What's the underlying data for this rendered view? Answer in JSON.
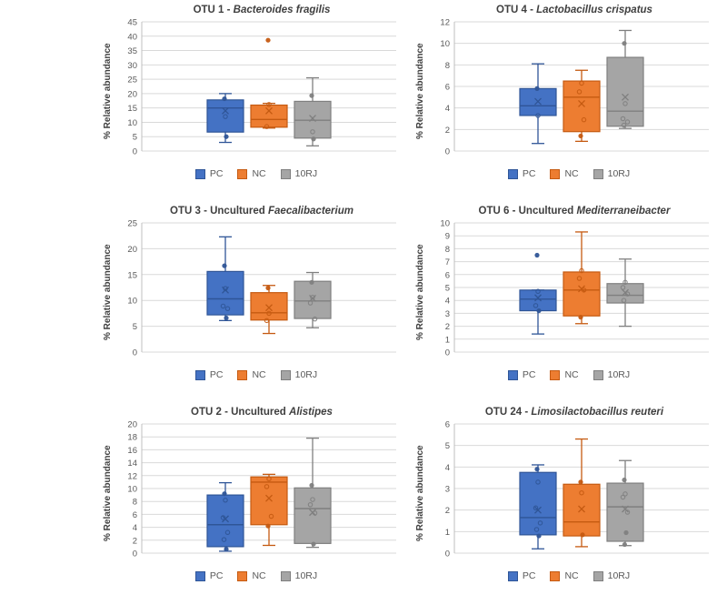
{
  "page": {
    "background": "#ffffff"
  },
  "chart_data": [
    {
      "type": "box",
      "title_prefix": "OTU 1 - ",
      "title_italic": "Bacteroides fragilis",
      "ylabel": "% Relative abundance",
      "ylim": [
        0,
        45
      ],
      "ytick_step": 5,
      "grid": true,
      "legend_position": "bottom",
      "groups": [
        {
          "name": "PC",
          "color": "#4472C4",
          "border": "#2F5597",
          "whisker_low": 3.0,
          "q1": 6.6,
          "median": 15.0,
          "q3": 17.8,
          "whisker_high": 20.0,
          "mean": 14.0,
          "points_open": [
            12.0
          ],
          "points_filled": [
            18.2,
            5.0
          ]
        },
        {
          "name": "NC",
          "color": "#ED7D31",
          "border": "#C55A11",
          "whisker_low": 8.0,
          "q1": 8.3,
          "median": 11.0,
          "q3": 16.0,
          "whisker_high": 16.6,
          "mean": 14.0,
          "points_open": [
            16.2,
            8.5
          ],
          "points_filled": [
            38.6
          ]
        },
        {
          "name": "10RJ",
          "color": "#A5A5A5",
          "border": "#7F7F7F",
          "whisker_low": 1.8,
          "q1": 4.5,
          "median": 10.7,
          "q3": 17.3,
          "whisker_high": 25.5,
          "mean": 11.4,
          "points_open": [
            6.7
          ],
          "points_filled": [
            19.3,
            4.2
          ]
        }
      ]
    },
    {
      "type": "box",
      "title_prefix": "OTU 4 - ",
      "title_italic": "Lactobacillus crispatus",
      "ylabel": "% Relative abundance",
      "ylim": [
        0,
        12
      ],
      "ytick_step": 2,
      "grid": true,
      "legend_position": "bottom",
      "groups": [
        {
          "name": "PC",
          "color": "#4472C4",
          "border": "#2F5597",
          "whisker_low": 0.7,
          "q1": 3.3,
          "median": 4.2,
          "q3": 5.8,
          "whisker_high": 8.1,
          "mean": 4.6,
          "points_open": [
            3.3
          ],
          "points_filled": [
            5.8
          ]
        },
        {
          "name": "NC",
          "color": "#ED7D31",
          "border": "#C55A11",
          "whisker_low": 0.9,
          "q1": 1.8,
          "median": 5.0,
          "q3": 6.5,
          "whisker_high": 7.5,
          "mean": 4.4,
          "points_open": [
            6.3,
            5.5,
            2.9
          ],
          "points_filled": [
            1.4
          ]
        },
        {
          "name": "10RJ",
          "color": "#A5A5A5",
          "border": "#7F7F7F",
          "whisker_low": 2.1,
          "q1": 2.3,
          "median": 3.7,
          "q3": 8.7,
          "whisker_high": 11.2,
          "mean": 5.0,
          "points_open": [
            4.4,
            3.0,
            2.7,
            2.4
          ],
          "points_filled": [
            10.0
          ]
        }
      ]
    },
    {
      "type": "box",
      "title_prefix": "OTU 3 - Uncultured ",
      "title_italic": "Faecalibacterium",
      "ylabel": "% Relative abundance",
      "ylim": [
        0,
        25
      ],
      "ytick_step": 5,
      "grid": true,
      "legend_position": "bottom",
      "groups": [
        {
          "name": "PC",
          "color": "#4472C4",
          "border": "#2F5597",
          "whisker_low": 6.1,
          "q1": 7.2,
          "median": 10.3,
          "q3": 15.6,
          "whisker_high": 22.3,
          "mean": 12.0,
          "points_open": [
            12.3,
            8.9,
            8.4
          ],
          "points_filled": [
            16.7,
            6.6
          ]
        },
        {
          "name": "NC",
          "color": "#ED7D31",
          "border": "#C55A11",
          "whisker_low": 3.6,
          "q1": 6.2,
          "median": 7.6,
          "q3": 11.5,
          "whisker_high": 12.9,
          "mean": 8.6,
          "points_open": [
            7.5,
            6.1
          ],
          "points_filled": [
            12.4
          ]
        },
        {
          "name": "10RJ",
          "color": "#A5A5A5",
          "border": "#7F7F7F",
          "whisker_low": 4.7,
          "q1": 6.5,
          "median": 9.9,
          "q3": 13.7,
          "whisker_high": 15.4,
          "mean": 10.4,
          "points_open": [
            10.6,
            9.5,
            6.4
          ],
          "points_filled": [
            13.5
          ]
        }
      ]
    },
    {
      "type": "box",
      "title_prefix": "OTU 6 - Uncultured ",
      "title_italic": "Mediterraneibacter",
      "ylabel": "% Relative abundance",
      "ylim": [
        0,
        10
      ],
      "ytick_step": 1,
      "grid": true,
      "legend_position": "bottom",
      "groups": [
        {
          "name": "PC",
          "color": "#4472C4",
          "border": "#2F5597",
          "whisker_low": 1.4,
          "q1": 3.2,
          "median": 4.1,
          "q3": 4.8,
          "whisker_high": 4.8,
          "mean": 4.2,
          "points_open": [
            4.7,
            3.6
          ],
          "points_filled": [
            7.5,
            3.2
          ]
        },
        {
          "name": "NC",
          "color": "#ED7D31",
          "border": "#C55A11",
          "whisker_low": 2.2,
          "q1": 2.8,
          "median": 4.8,
          "q3": 6.2,
          "whisker_high": 9.3,
          "mean": 4.9,
          "points_open": [
            6.3,
            5.7,
            4.8
          ],
          "points_filled": [
            2.7
          ]
        },
        {
          "name": "10RJ",
          "color": "#A5A5A5",
          "border": "#7F7F7F",
          "whisker_low": 2.0,
          "q1": 3.8,
          "median": 4.4,
          "q3": 5.3,
          "whisker_high": 7.2,
          "mean": 4.6,
          "points_open": [
            5.4,
            5.0,
            4.5,
            4.0
          ],
          "points_filled": []
        }
      ]
    },
    {
      "type": "box",
      "title_prefix": "OTU 2 - Uncultured ",
      "title_italic": "Alistipes",
      "ylabel": "% Relative abundance",
      "ylim": [
        0,
        20
      ],
      "ytick_step": 2,
      "grid": true,
      "legend_position": "bottom",
      "groups": [
        {
          "name": "PC",
          "color": "#4472C4",
          "border": "#2F5597",
          "whisker_low": 0.3,
          "q1": 1.0,
          "median": 4.4,
          "q3": 9.0,
          "whisker_high": 10.9,
          "mean": 5.3,
          "points_open": [
            8.2,
            5.5,
            3.2,
            2.1
          ],
          "points_filled": [
            9.2,
            0.6
          ]
        },
        {
          "name": "NC",
          "color": "#ED7D31",
          "border": "#C55A11",
          "whisker_low": 1.2,
          "q1": 4.4,
          "median": 11.0,
          "q3": 11.8,
          "whisker_high": 12.2,
          "mean": 8.5,
          "points_open": [
            11.5,
            10.3,
            5.7
          ],
          "points_filled": [
            4.2
          ]
        },
        {
          "name": "10RJ",
          "color": "#A5A5A5",
          "border": "#7F7F7F",
          "whisker_low": 0.9,
          "q1": 1.5,
          "median": 6.9,
          "q3": 10.1,
          "whisker_high": 17.8,
          "mean": 6.3,
          "points_open": [
            8.3,
            7.5,
            6.2
          ],
          "points_filled": [
            10.5,
            1.4
          ]
        }
      ]
    },
    {
      "type": "box",
      "title_prefix": "OTU 24 - ",
      "title_italic": "Limosilactobacillus reuteri",
      "ylabel": "% Relative abundance",
      "ylim": [
        0,
        6
      ],
      "ytick_step": 1,
      "grid": true,
      "legend_position": "bottom",
      "groups": [
        {
          "name": "PC",
          "color": "#4472C4",
          "border": "#2F5597",
          "whisker_low": 0.2,
          "q1": 0.85,
          "median": 1.65,
          "q3": 3.75,
          "whisker_high": 4.1,
          "mean": 2.0,
          "points_open": [
            3.3,
            2.1,
            1.4,
            1.1
          ],
          "points_filled": [
            3.9,
            0.8
          ]
        },
        {
          "name": "NC",
          "color": "#ED7D31",
          "border": "#C55A11",
          "whisker_low": 0.3,
          "q1": 0.8,
          "median": 1.45,
          "q3": 3.2,
          "whisker_high": 5.3,
          "mean": 2.05,
          "points_open": [
            2.8
          ],
          "points_filled": [
            3.3,
            0.85
          ]
        },
        {
          "name": "10RJ",
          "color": "#A5A5A5",
          "border": "#7F7F7F",
          "whisker_low": 0.35,
          "q1": 0.55,
          "median": 2.15,
          "q3": 3.25,
          "whisker_high": 4.3,
          "mean": 2.05,
          "points_open": [
            2.75,
            2.6,
            1.9
          ],
          "points_filled": [
            3.4,
            0.95,
            0.4
          ]
        }
      ]
    }
  ],
  "colors": {
    "grid_line": "#D9D9D9",
    "axis_line": "#BFBFBF",
    "tick_text": "#595959",
    "title_text": "#3F3F3F"
  }
}
